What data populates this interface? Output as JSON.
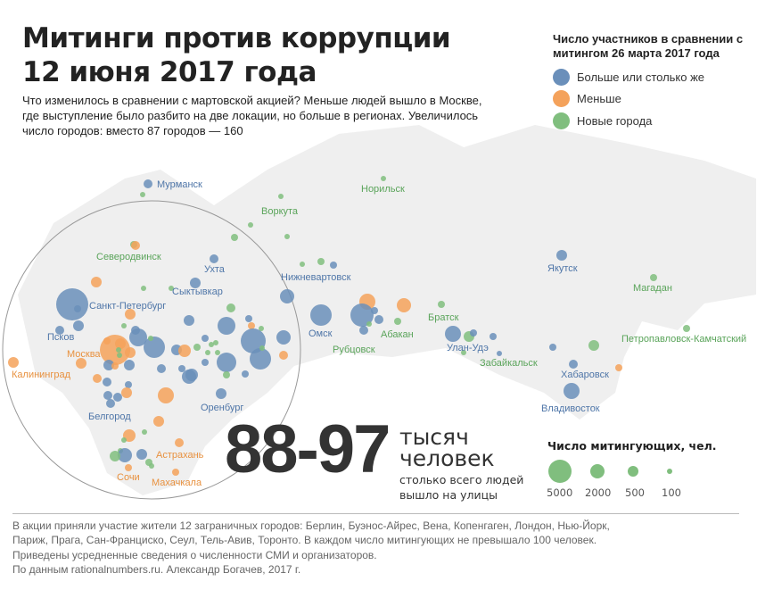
{
  "title_line1": "Митинги против коррупции",
  "title_line2": "12 июня 2017 года",
  "subtitle": "Что изменилось в сравнении с мартовской акцией? Меньше людей вышло в Москве, где  выступление было разбито на две локации, но больше в регионах. Увеличилось число городов: вместо 87 городов — 160",
  "legend": {
    "title": "Число участников в сравнении с митингом 26 марта 2017 года",
    "items": [
      {
        "label": "Больше или столько же",
        "color": "#6a8fba"
      },
      {
        "label": "Меньше",
        "color": "#f4a25b"
      },
      {
        "label": "Новые города",
        "color": "#80be7e"
      }
    ]
  },
  "cities": [
    {
      "name": "Мурманск",
      "type": "blue"
    },
    {
      "name": "Норильск",
      "type": "green"
    },
    {
      "name": "Воркута",
      "type": "green"
    },
    {
      "name": "Северодвинск",
      "type": "green"
    },
    {
      "name": "Ухта",
      "type": "blue"
    },
    {
      "name": "Нижневартовск",
      "type": "blue"
    },
    {
      "name": "Якутск",
      "type": "blue"
    },
    {
      "name": "Магадан",
      "type": "green"
    },
    {
      "name": "Сыктывкар",
      "type": "blue"
    },
    {
      "name": "Санкт-Петербург",
      "type": "blue"
    },
    {
      "name": "Омск",
      "type": "blue"
    },
    {
      "name": "Абакан",
      "type": "green"
    },
    {
      "name": "Братск",
      "type": "green"
    },
    {
      "name": "Улан-Удэ",
      "type": "blue"
    },
    {
      "name": "Рубцовск",
      "type": "green"
    },
    {
      "name": "Забайкальск",
      "type": "green"
    },
    {
      "name": "Петропавловск-Камчатский",
      "type": "green"
    },
    {
      "name": "Псков",
      "type": "blue"
    },
    {
      "name": "Москва",
      "type": "orange"
    },
    {
      "name": "Калининград",
      "type": "orange"
    },
    {
      "name": "Хабаровск",
      "type": "blue"
    },
    {
      "name": "Оренбург",
      "type": "blue"
    },
    {
      "name": "Владивосток",
      "type": "blue"
    },
    {
      "name": "Белгород",
      "type": "blue"
    },
    {
      "name": "Астрахань",
      "type": "orange"
    },
    {
      "name": "Сочи",
      "type": "orange"
    },
    {
      "name": "Махачкала",
      "type": "orange"
    }
  ],
  "total": {
    "number": "88-97",
    "unit_line1": "тысяч",
    "unit_line2": "человек",
    "caption_line1": "столько всего людей",
    "caption_line2": "вышло на улицы"
  },
  "size_legend": {
    "title": "Число митингующих, чел.",
    "values": [
      "5000",
      "2000",
      "500",
      "100"
    ]
  },
  "footer": [
    "В акции приняли участие жители 12 заграничных городов: Берлин, Буэнос-Айрес, Вена, Копенгаген, Лондон, Нью-Йорк,",
    "Париж, Прага, Сан-Франциско, Сеул, Тель-Авив, Торонто. В каждом число митингующих не превышало 100 человек.",
    "Приведены усредненные сведения о численности СМИ и организаторов.",
    "По данным rationalnumbers.ru. Александр Богачев, 2017 г."
  ]
}
